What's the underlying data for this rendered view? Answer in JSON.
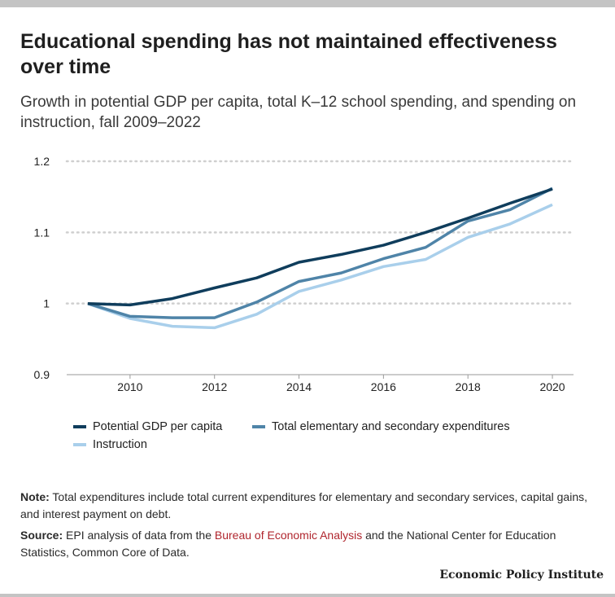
{
  "header": {
    "title": "Educational spending has not maintained effectiveness over time",
    "subtitle": "Growth in potential GDP per capita, total K–12 school spending, and spending on instruction, fall 2009–2022"
  },
  "chart_data": {
    "type": "line",
    "title": "Educational spending has not maintained effectiveness over time",
    "subtitle": "Growth in potential GDP per capita, total K–12 school spending, and spending on instruction, fall 2009–2022",
    "xlabel": "",
    "ylabel": "",
    "x": [
      2009,
      2010,
      2011,
      2012,
      2013,
      2014,
      2015,
      2016,
      2017,
      2018,
      2019,
      2020
    ],
    "xlim": [
      2008.5,
      2020.5
    ],
    "xticks": [
      2010,
      2012,
      2014,
      2016,
      2018,
      2020
    ],
    "ylim": [
      0.9,
      1.2
    ],
    "yticks": [
      0.9,
      1,
      1.1,
      1.2
    ],
    "ytick_labels": [
      "0.9",
      "1",
      "1.1",
      "1.2"
    ],
    "grid": "horizontal dotted",
    "legend_position": "bottom",
    "series": [
      {
        "name": "Potential GDP per capita",
        "color": "#0f3d5c",
        "values": [
          1.0,
          0.998,
          1.007,
          1.022,
          1.036,
          1.058,
          1.069,
          1.082,
          1.1,
          1.12,
          1.141,
          1.161
        ]
      },
      {
        "name": "Total elementary and secondary expenditures",
        "color": "#4f84a8",
        "values": [
          1.0,
          0.982,
          0.98,
          0.98,
          1.002,
          1.031,
          1.043,
          1.063,
          1.079,
          1.116,
          1.132,
          1.162
        ]
      },
      {
        "name": "Instruction",
        "color": "#a9cfeb",
        "values": [
          1.0,
          0.979,
          0.968,
          0.966,
          0.985,
          1.017,
          1.033,
          1.052,
          1.062,
          1.093,
          1.112,
          1.139
        ]
      }
    ]
  },
  "footer": {
    "note_label": "Note:",
    "note_text": " Total expenditures include total current expenditures for elementary and secondary services, capital gains, and interest payment on debt.",
    "source_label": "Source:",
    "source_pre": " EPI analysis of data from the ",
    "source_link": "Bureau of Economic Analysis",
    "source_post": " and the National Center for Education Statistics, Common Core of Data.",
    "brand": "Economic Policy Institute"
  },
  "colors": {
    "link": "#b0262e",
    "grid": "#cfcfcf",
    "axis": "#9a9a9a"
  }
}
